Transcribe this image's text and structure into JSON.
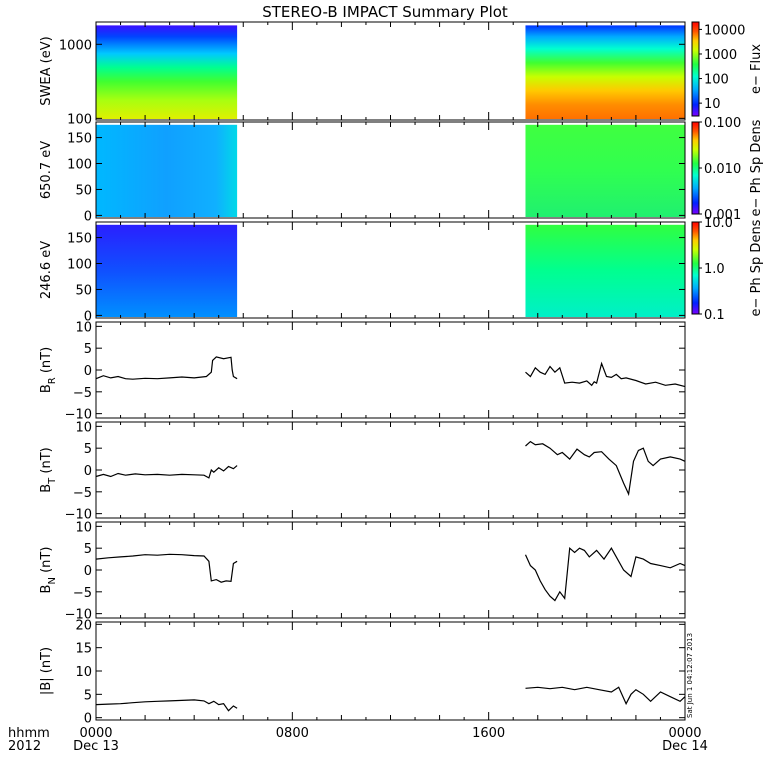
{
  "title": "STEREO-B IMPACT Summary Plot",
  "x_axis": {
    "ticks": [
      {
        "hour": 0,
        "label": "0000",
        "sub": "Dec 13"
      },
      {
        "hour": 8,
        "label": "0800",
        "sub": ""
      },
      {
        "hour": 16,
        "label": "1600",
        "sub": ""
      },
      {
        "hour": 24,
        "label": "0000",
        "sub": "Dec 14"
      }
    ],
    "left_label_top": "hhmm",
    "left_label_bottom": "2012"
  },
  "stamp": "Sat Jun 1 04:12:07 2013",
  "colors": {
    "data_line": "#000000",
    "frame": "#000000",
    "spectrogram_palette": [
      "#7a00ff",
      "#0022ff",
      "#00aaff",
      "#00ffd0",
      "#22ff44",
      "#ccff00",
      "#ffcc00",
      "#ff5500",
      "#ff0000"
    ]
  },
  "chart_data": [
    {
      "type": "heatmap",
      "panel": "swea",
      "ylabel": "SWEA (eV)",
      "y_scale": "log",
      "ylim": [
        95,
        2000
      ],
      "yticks": [
        {
          "v": 100,
          "label": "100"
        },
        {
          "v": 1000,
          "label": "1000"
        }
      ],
      "xlim_hours": [
        0,
        24
      ],
      "data_intervals_hours": [
        [
          0,
          5.75
        ],
        [
          17.5,
          24
        ]
      ],
      "colorbar": {
        "label": "e− Flux",
        "scale": "log",
        "range": [
          3,
          20000
        ],
        "ticks": [
          {
            "v": 10,
            "label": "10"
          },
          {
            "v": 100,
            "label": "100"
          },
          {
            "v": 1000,
            "label": "1000"
          },
          {
            "v": 10000,
            "label": "10000"
          }
        ]
      }
    },
    {
      "type": "heatmap",
      "panel": "pad650",
      "ylabel": "650.7 eV",
      "y_scale": "linear",
      "ylim": [
        -5,
        180
      ],
      "yticks": [
        {
          "v": 0,
          "label": "0"
        },
        {
          "v": 50,
          "label": "50"
        },
        {
          "v": 100,
          "label": "100"
        },
        {
          "v": 150,
          "label": "150"
        }
      ],
      "xlim_hours": [
        0,
        24
      ],
      "data_intervals_hours": [
        [
          0,
          5.75
        ],
        [
          17.5,
          24
        ]
      ],
      "colorbar": {
        "label": "e− Ph Sp Dens",
        "scale": "log",
        "range": [
          0.001,
          0.1
        ],
        "ticks": [
          {
            "v": 0.001,
            "label": "0.001"
          },
          {
            "v": 0.01,
            "label": "0.010"
          },
          {
            "v": 0.1,
            "label": "0.100"
          }
        ]
      }
    },
    {
      "type": "heatmap",
      "panel": "pad246",
      "ylabel": "246.6 eV",
      "y_scale": "linear",
      "ylim": [
        -5,
        180
      ],
      "yticks": [
        {
          "v": 0,
          "label": "0"
        },
        {
          "v": 50,
          "label": "50"
        },
        {
          "v": 100,
          "label": "100"
        },
        {
          "v": 150,
          "label": "150"
        }
      ],
      "xlim_hours": [
        0,
        24
      ],
      "data_intervals_hours": [
        [
          0,
          5.75
        ],
        [
          17.5,
          24
        ]
      ],
      "colorbar": {
        "label": "e− Ph Sp Dens",
        "scale": "log",
        "range": [
          0.1,
          10
        ],
        "ticks": [
          {
            "v": 0.1,
            "label": "0.1"
          },
          {
            "v": 1,
            "label": "1.0"
          },
          {
            "v": 10,
            "label": "10.0"
          }
        ]
      }
    },
    {
      "type": "line",
      "panel": "br",
      "ylabel": "B",
      "ylabel_sub": "R",
      "ylabel_unit": "(nT)",
      "ylim": [
        -11,
        11
      ],
      "yticks": [
        {
          "v": -10,
          "label": "−10"
        },
        {
          "v": -5,
          "label": "−5"
        },
        {
          "v": 0,
          "label": "0"
        },
        {
          "v": 5,
          "label": "5"
        },
        {
          "v": 10,
          "label": "10"
        }
      ],
      "segments": [
        {
          "x": [
            0,
            0.3,
            0.6,
            0.9,
            1.2,
            1.5,
            2,
            2.5,
            3,
            3.5,
            4,
            4.5,
            4.7,
            4.75,
            4.9,
            5.2,
            5.5,
            5.55,
            5.6,
            5.75
          ],
          "y": [
            -2,
            -1.3,
            -1.8,
            -1.5,
            -2,
            -2.1,
            -1.9,
            -2,
            -1.8,
            -1.6,
            -1.8,
            -1.5,
            -0.5,
            2.2,
            3,
            2.6,
            2.9,
            0,
            -1.5,
            -2
          ]
        },
        {
          "x": [
            17.5,
            17.7,
            17.9,
            18.1,
            18.3,
            18.5,
            18.7,
            18.9,
            19.1,
            19.4,
            19.7,
            20,
            20.2,
            20.3,
            20.4,
            20.6,
            20.8,
            21,
            21.2,
            21.4,
            21.6,
            22,
            22.4,
            22.8,
            23.2,
            23.6,
            24
          ],
          "y": [
            -0.5,
            -1.5,
            0.5,
            -0.5,
            -1,
            0.8,
            -0.5,
            0.5,
            -3,
            -2.8,
            -3,
            -2.5,
            -3.5,
            -2.7,
            -3,
            1.5,
            -1.5,
            -1.7,
            -1,
            -2,
            -1.8,
            -2.4,
            -3.2,
            -2.8,
            -3.5,
            -3.2,
            -3.8
          ]
        }
      ]
    },
    {
      "type": "line",
      "panel": "bt",
      "ylabel": "B",
      "ylabel_sub": "T",
      "ylabel_unit": "(nT)",
      "ylim": [
        -11,
        11
      ],
      "yticks": [
        {
          "v": -10,
          "label": "−10"
        },
        {
          "v": -5,
          "label": "−5"
        },
        {
          "v": 0,
          "label": "0"
        },
        {
          "v": 5,
          "label": "5"
        },
        {
          "v": 10,
          "label": "10"
        }
      ],
      "segments": [
        {
          "x": [
            0,
            0.3,
            0.6,
            0.9,
            1.2,
            1.6,
            2,
            2.5,
            3,
            3.5,
            4,
            4.4,
            4.6,
            4.7,
            4.8,
            5,
            5.2,
            5.4,
            5.6,
            5.75
          ],
          "y": [
            -1.5,
            -1,
            -1.5,
            -0.8,
            -1.2,
            -0.9,
            -1.1,
            -1,
            -1.2,
            -1,
            -1.1,
            -1.2,
            -1.8,
            0,
            -0.5,
            0.5,
            -0.2,
            0.8,
            0.3,
            1
          ]
        },
        {
          "x": [
            17.5,
            17.7,
            17.9,
            18.2,
            18.5,
            18.8,
            19,
            19.3,
            19.6,
            19.9,
            20.1,
            20.3,
            20.6,
            20.9,
            21.2,
            21.5,
            21.7,
            21.9,
            22.1,
            22.3,
            22.5,
            22.7,
            23,
            23.4,
            23.8,
            24
          ],
          "y": [
            5.5,
            6.5,
            5.8,
            6,
            5,
            3.5,
            4,
            2.5,
            4.8,
            3.5,
            3,
            4,
            4.2,
            2.5,
            1,
            -3,
            -5.5,
            2,
            4.5,
            5,
            2,
            1,
            2.5,
            3,
            2.5,
            2
          ]
        }
      ]
    },
    {
      "type": "line",
      "panel": "bn",
      "ylabel": "B",
      "ylabel_sub": "N",
      "ylabel_unit": "(nT)",
      "ylim": [
        -11,
        11
      ],
      "yticks": [
        {
          "v": -10,
          "label": "−10"
        },
        {
          "v": -5,
          "label": "−5"
        },
        {
          "v": 0,
          "label": "0"
        },
        {
          "v": 5,
          "label": "5"
        },
        {
          "v": 10,
          "label": "10"
        }
      ],
      "segments": [
        {
          "x": [
            0,
            0.5,
            1,
            1.5,
            2,
            2.5,
            3,
            3.5,
            4,
            4.4,
            4.6,
            4.7,
            4.9,
            5.1,
            5.3,
            5.5,
            5.6,
            5.75
          ],
          "y": [
            2.5,
            2.8,
            3,
            3.2,
            3.5,
            3.4,
            3.6,
            3.5,
            3.3,
            3.2,
            2,
            -2.5,
            -2.2,
            -2.8,
            -2.5,
            -2.6,
            1.5,
            2
          ]
        },
        {
          "x": [
            17.5,
            17.7,
            17.9,
            18.1,
            18.3,
            18.5,
            18.7,
            18.9,
            19.1,
            19.3,
            19.5,
            19.7,
            19.9,
            20.1,
            20.4,
            20.7,
            21,
            21.2,
            21.5,
            21.8,
            22,
            22.3,
            22.6,
            23,
            23.4,
            23.8,
            24
          ],
          "y": [
            3.5,
            1,
            0,
            -2.5,
            -4.5,
            -6,
            -7,
            -5,
            -6.5,
            5,
            4,
            5,
            4.5,
            3,
            4.5,
            2.5,
            5,
            3,
            0,
            -1.5,
            3,
            2.5,
            1.5,
            1,
            0.5,
            1.5,
            1
          ]
        }
      ]
    },
    {
      "type": "line",
      "panel": "bmag",
      "ylabel": "|B| (nT)",
      "ylim": [
        -0.5,
        20.5
      ],
      "yticks": [
        {
          "v": 0,
          "label": "0"
        },
        {
          "v": 5,
          "label": "5"
        },
        {
          "v": 10,
          "label": "10"
        },
        {
          "v": 15,
          "label": "15"
        },
        {
          "v": 20,
          "label": "20"
        }
      ],
      "segments": [
        {
          "x": [
            0,
            0.5,
            1,
            1.5,
            2,
            2.5,
            3,
            3.5,
            4,
            4.4,
            4.6,
            4.8,
            5,
            5.2,
            5.4,
            5.6,
            5.75
          ],
          "y": [
            2.8,
            2.9,
            3,
            3.2,
            3.4,
            3.5,
            3.6,
            3.7,
            3.8,
            3.6,
            3,
            3.5,
            2.8,
            3,
            1.5,
            2.5,
            2
          ]
        },
        {
          "x": [
            17.5,
            18,
            18.5,
            19,
            19.5,
            20,
            20.5,
            21,
            21.3,
            21.6,
            21.8,
            22,
            22.3,
            22.6,
            23,
            23.4,
            23.8,
            24
          ],
          "y": [
            6.3,
            6.5,
            6.2,
            6.5,
            6,
            6.5,
            6,
            5.5,
            6.5,
            3,
            5,
            6,
            5,
            3.5,
            5.5,
            4.5,
            3.5,
            4.5
          ]
        }
      ]
    }
  ]
}
